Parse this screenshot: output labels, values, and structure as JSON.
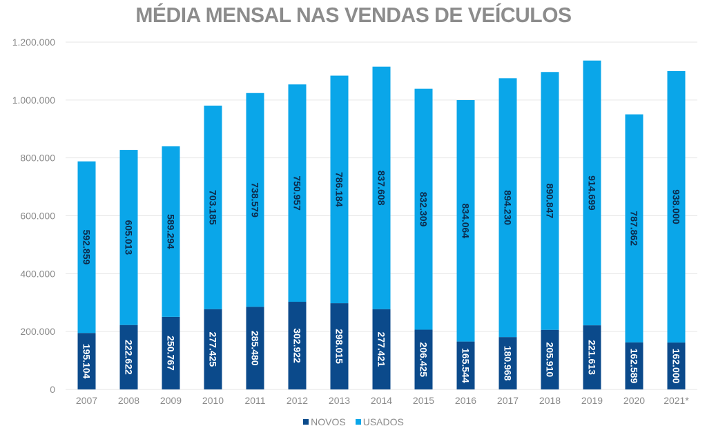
{
  "chart_data": {
    "type": "bar",
    "stacked": true,
    "title": "MÉDIA MENSAL NAS VENDAS DE VEÍCULOS",
    "xlabel": "",
    "ylabel": "",
    "ylim": [
      0,
      1200000
    ],
    "yticks": [
      0,
      200000,
      400000,
      600000,
      800000,
      1000000,
      1200000
    ],
    "ytick_labels": [
      "0",
      "200.000",
      "400.000",
      "600.000",
      "800.000",
      "1.000.000",
      "1.200.000"
    ],
    "grid": true,
    "legend_position": "bottom",
    "categories": [
      "2007",
      "2008",
      "2009",
      "2010",
      "2011",
      "2012",
      "2013",
      "2014",
      "2015",
      "2016",
      "2017",
      "2018",
      "2019",
      "2020",
      "2021*"
    ],
    "series": [
      {
        "name": "NOVOS",
        "color": "#0b4a8b",
        "values": [
          195104,
          222622,
          250767,
          277425,
          285480,
          302922,
          298015,
          277421,
          206425,
          165544,
          180968,
          205910,
          221613,
          162589,
          162000
        ],
        "labels": [
          "195.104",
          "222.622",
          "250.767",
          "277.425",
          "285.480",
          "302.922",
          "298.015",
          "277.421",
          "206.425",
          "165.544",
          "180.968",
          "205.910",
          "221.613",
          "162.589",
          "162.000"
        ]
      },
      {
        "name": "USADOS",
        "color": "#0aa6e9",
        "values": [
          592859,
          605013,
          589294,
          703185,
          738579,
          750957,
          786184,
          837608,
          832309,
          834064,
          894230,
          890847,
          914699,
          787862,
          938000
        ],
        "labels": [
          "592.859",
          "605.013",
          "589.294",
          "703.185",
          "738.579",
          "750.957",
          "786.184",
          "837.608",
          "832.309",
          "834.064",
          "894.230",
          "890.847",
          "914.699",
          "787.862",
          "938.000"
        ]
      }
    ]
  }
}
